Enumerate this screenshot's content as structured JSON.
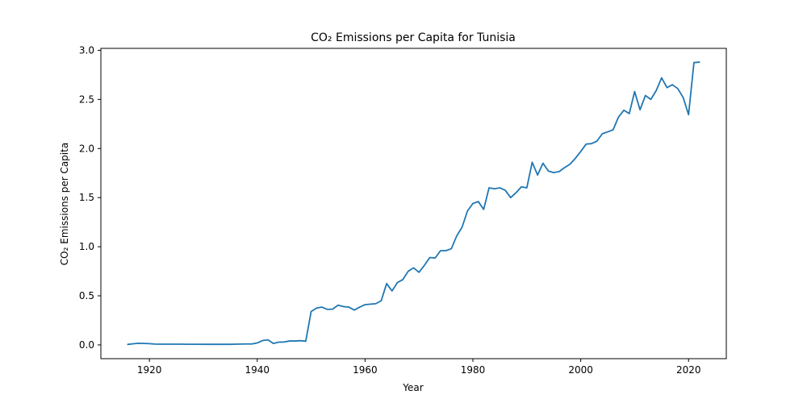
{
  "chart_data": {
    "type": "line",
    "title": "CO₂ Emissions per Capita for Tunisia",
    "xlabel": "Year",
    "ylabel": "CO₂ Emissions per Capita",
    "xlim": [
      1911,
      2027
    ],
    "ylim": [
      -0.14,
      3.02
    ],
    "xticks": [
      1920,
      1940,
      1960,
      1980,
      2000,
      2020
    ],
    "yticks": [
      0.0,
      0.5,
      1.0,
      1.5,
      2.0,
      2.5,
      3.0
    ],
    "ytick_labels": [
      "0.0",
      "0.5",
      "1.0",
      "1.5",
      "2.0",
      "2.5",
      "3.0"
    ],
    "grid": false,
    "line_color": "#1f77b4",
    "x": [
      1916,
      1917,
      1918,
      1919,
      1920,
      1921,
      1922,
      1923,
      1924,
      1925,
      1926,
      1927,
      1928,
      1929,
      1930,
      1931,
      1932,
      1933,
      1934,
      1935,
      1936,
      1937,
      1938,
      1939,
      1940,
      1941,
      1942,
      1943,
      1944,
      1945,
      1946,
      1947,
      1948,
      1949,
      1950,
      1951,
      1952,
      1953,
      1954,
      1955,
      1956,
      1957,
      1958,
      1959,
      1960,
      1961,
      1962,
      1963,
      1964,
      1965,
      1966,
      1967,
      1968,
      1969,
      1970,
      1971,
      1972,
      1973,
      1974,
      1975,
      1976,
      1977,
      1978,
      1979,
      1980,
      1981,
      1982,
      1983,
      1984,
      1985,
      1986,
      1987,
      1988,
      1989,
      1990,
      1991,
      1992,
      1993,
      1994,
      1995,
      1996,
      1997,
      1998,
      1999,
      2000,
      2001,
      2002,
      2003,
      2004,
      2005,
      2006,
      2007,
      2008,
      2009,
      2010,
      2011,
      2012,
      2013,
      2014,
      2015,
      2016,
      2017,
      2018,
      2019,
      2020,
      2021,
      2022
    ],
    "y": [
      0.005,
      0.012,
      0.017,
      0.015,
      0.013,
      0.009,
      0.008,
      0.008,
      0.008,
      0.008,
      0.008,
      0.007,
      0.007,
      0.007,
      0.006,
      0.006,
      0.006,
      0.006,
      0.006,
      0.006,
      0.008,
      0.009,
      0.01,
      0.01,
      0.02,
      0.045,
      0.052,
      0.015,
      0.028,
      0.03,
      0.04,
      0.04,
      0.043,
      0.038,
      0.34,
      0.375,
      0.385,
      0.362,
      0.365,
      0.405,
      0.39,
      0.385,
      0.355,
      0.385,
      0.41,
      0.415,
      0.42,
      0.45,
      0.625,
      0.55,
      0.635,
      0.665,
      0.75,
      0.785,
      0.74,
      0.81,
      0.89,
      0.885,
      0.96,
      0.96,
      0.98,
      1.11,
      1.2,
      1.365,
      1.44,
      1.46,
      1.38,
      1.6,
      1.59,
      1.6,
      1.575,
      1.5,
      1.55,
      1.61,
      1.6,
      1.86,
      1.73,
      1.85,
      1.77,
      1.755,
      1.765,
      1.805,
      1.84,
      1.9,
      1.97,
      2.045,
      2.05,
      2.075,
      2.15,
      2.17,
      2.19,
      2.32,
      2.39,
      2.355,
      2.58,
      2.395,
      2.54,
      2.5,
      2.59,
      2.72,
      2.62,
      2.65,
      2.61,
      2.52,
      2.345,
      2.875,
      2.88
    ]
  }
}
